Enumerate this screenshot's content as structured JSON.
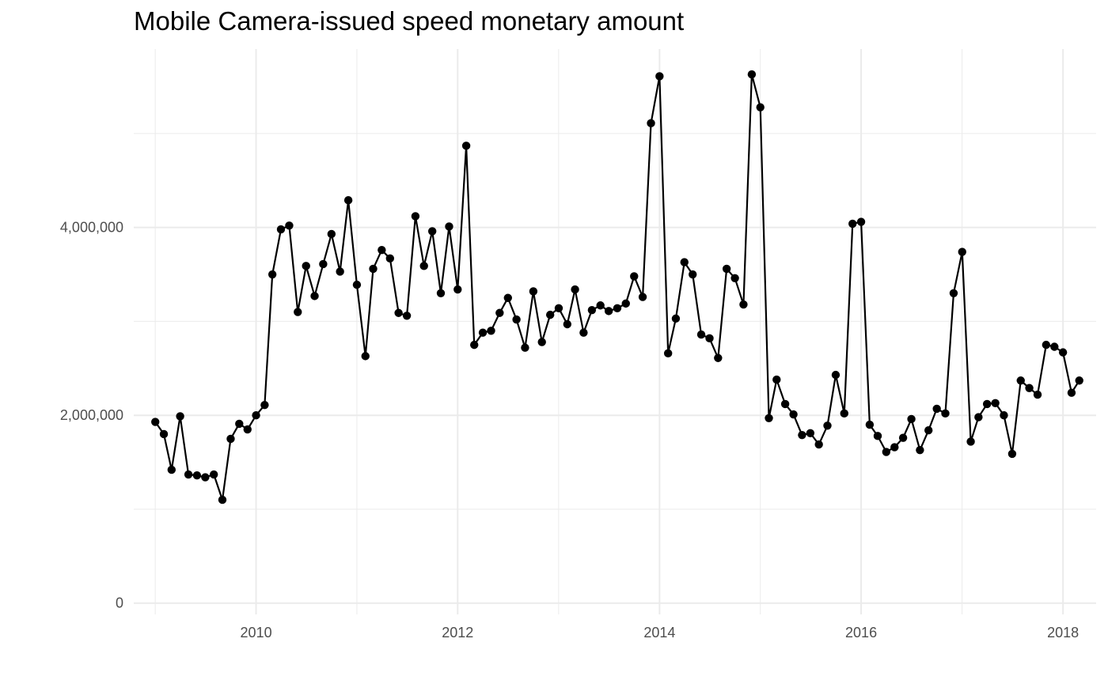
{
  "chart_data": {
    "type": "line",
    "title": "Mobile Camera-issued speed monetary amount",
    "xlabel": "",
    "ylabel": "",
    "x_axis": {
      "type": "date",
      "range": [
        "2008-10-15",
        "2018-05-01"
      ],
      "ticks": [
        {
          "value": "2010-01-01",
          "label": "2010"
        },
        {
          "value": "2012-01-01",
          "label": "2012"
        },
        {
          "value": "2014-01-01",
          "label": "2014"
        },
        {
          "value": "2016-01-01",
          "label": "2016"
        },
        {
          "value": "2018-01-01",
          "label": "2018"
        }
      ]
    },
    "y_axis": {
      "range": [
        -120000,
        5900000
      ],
      "ticks": [
        {
          "value": 0,
          "label": "0"
        },
        {
          "value": 2000000,
          "label": "2,000,000"
        },
        {
          "value": 4000000,
          "label": "4,000,000"
        }
      ]
    },
    "grid": true,
    "legend": "none",
    "series": [
      {
        "color": "#000000",
        "x": [
          "2009-01-01",
          "2009-02-01",
          "2009-03-01",
          "2009-04-01",
          "2009-05-01",
          "2009-06-01",
          "2009-07-01",
          "2009-08-01",
          "2009-09-01",
          "2009-10-01",
          "2009-11-01",
          "2009-12-01",
          "2010-01-01",
          "2010-02-01",
          "2010-03-01",
          "2010-04-01",
          "2010-05-01",
          "2010-06-01",
          "2010-07-01",
          "2010-08-01",
          "2010-09-01",
          "2010-10-01",
          "2010-11-01",
          "2010-12-01",
          "2011-01-01",
          "2011-02-01",
          "2011-03-01",
          "2011-04-01",
          "2011-05-01",
          "2011-06-01",
          "2011-07-01",
          "2011-08-01",
          "2011-09-01",
          "2011-10-01",
          "2011-11-01",
          "2011-12-01",
          "2012-01-01",
          "2012-02-01",
          "2012-03-01",
          "2012-04-01",
          "2012-05-01",
          "2012-06-01",
          "2012-07-01",
          "2012-08-01",
          "2012-09-01",
          "2012-10-01",
          "2012-11-01",
          "2012-12-01",
          "2013-01-01",
          "2013-02-01",
          "2013-03-01",
          "2013-04-01",
          "2013-05-01",
          "2013-06-01",
          "2013-07-01",
          "2013-08-01",
          "2013-09-01",
          "2013-10-01",
          "2013-11-01",
          "2013-12-01",
          "2014-01-01",
          "2014-02-01",
          "2014-03-01",
          "2014-04-01",
          "2014-05-01",
          "2014-06-01",
          "2014-07-01",
          "2014-08-01",
          "2014-09-01",
          "2014-10-01",
          "2014-11-01",
          "2014-12-01",
          "2015-01-01",
          "2015-02-01",
          "2015-03-01",
          "2015-04-01",
          "2015-05-01",
          "2015-06-01",
          "2015-07-01",
          "2015-08-01",
          "2015-09-01",
          "2015-10-01",
          "2015-11-01",
          "2015-12-01",
          "2016-01-01",
          "2016-02-01",
          "2016-03-01",
          "2016-04-01",
          "2016-05-01",
          "2016-06-01",
          "2016-07-01",
          "2016-08-01",
          "2016-09-01",
          "2016-10-01",
          "2016-11-01",
          "2016-12-01",
          "2017-01-01",
          "2017-02-01",
          "2017-03-01",
          "2017-04-01",
          "2017-05-01",
          "2017-06-01",
          "2017-07-01",
          "2017-08-01",
          "2017-09-01",
          "2017-10-01",
          "2017-11-01",
          "2017-12-01",
          "2018-01-01",
          "2018-02-01",
          "2018-03-01"
        ],
        "y": [
          1930000,
          1800000,
          1420000,
          1990000,
          1370000,
          1360000,
          1340000,
          1370000,
          1100000,
          1750000,
          1910000,
          1850000,
          2000000,
          2110000,
          3500000,
          3980000,
          4020000,
          3100000,
          3590000,
          3270000,
          3610000,
          3930000,
          3530000,
          4290000,
          3390000,
          2630000,
          3560000,
          3760000,
          3670000,
          3090000,
          3060000,
          4120000,
          3590000,
          3960000,
          3300000,
          4010000,
          3340000,
          4870000,
          2750000,
          2880000,
          2900000,
          3090000,
          3250000,
          3020000,
          2720000,
          3320000,
          2780000,
          3070000,
          3140000,
          2970000,
          3340000,
          2880000,
          3120000,
          3170000,
          3110000,
          3140000,
          3190000,
          3480000,
          3260000,
          5110000,
          5610000,
          2660000,
          3030000,
          3630000,
          3500000,
          2860000,
          2820000,
          2610000,
          3560000,
          3460000,
          3180000,
          5630000,
          5280000,
          1970000,
          2380000,
          2120000,
          2010000,
          1790000,
          1810000,
          1690000,
          1890000,
          2430000,
          2020000,
          4040000,
          4060000,
          1900000,
          1780000,
          1610000,
          1660000,
          1760000,
          1960000,
          1630000,
          1840000,
          2070000,
          2020000,
          3300000,
          3740000,
          1720000,
          1980000,
          2120000,
          2130000,
          2000000,
          1590000,
          2370000,
          2290000,
          2220000,
          2750000,
          2730000,
          2670000,
          2240000,
          2370000
        ]
      }
    ]
  }
}
